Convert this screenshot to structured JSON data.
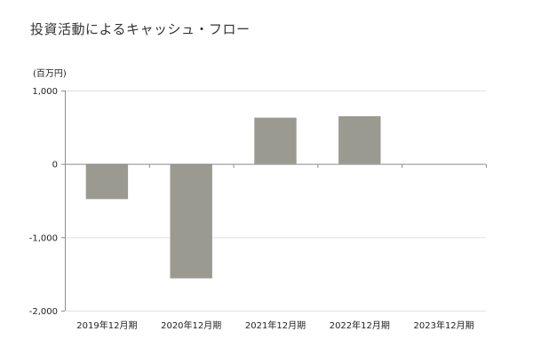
{
  "title": "投資活動によるキャッシュ・フロー",
  "unit": "(百万円)",
  "colors": {
    "bar": "#9a9a91",
    "grid": "#e1e1e1",
    "axis": "#8c8c8c"
  },
  "chart_data": {
    "type": "bar",
    "title": "投資活動によるキャッシュ・フロー",
    "ylabel": "(百万円)",
    "xlabel": "",
    "categories": [
      "2019年12月期",
      "2020年12月期",
      "2021年12月期",
      "2022年12月期",
      "2023年12月期"
    ],
    "values": [
      -480,
      -1560,
      630,
      650,
      null
    ],
    "ylim": [
      -2000,
      1000
    ],
    "yticks": [
      1000,
      0,
      -1000,
      -2000
    ],
    "ytick_labels": [
      "1,000",
      "0",
      "-1,000",
      "-2,000"
    ],
    "grid": true,
    "legend": "none"
  }
}
